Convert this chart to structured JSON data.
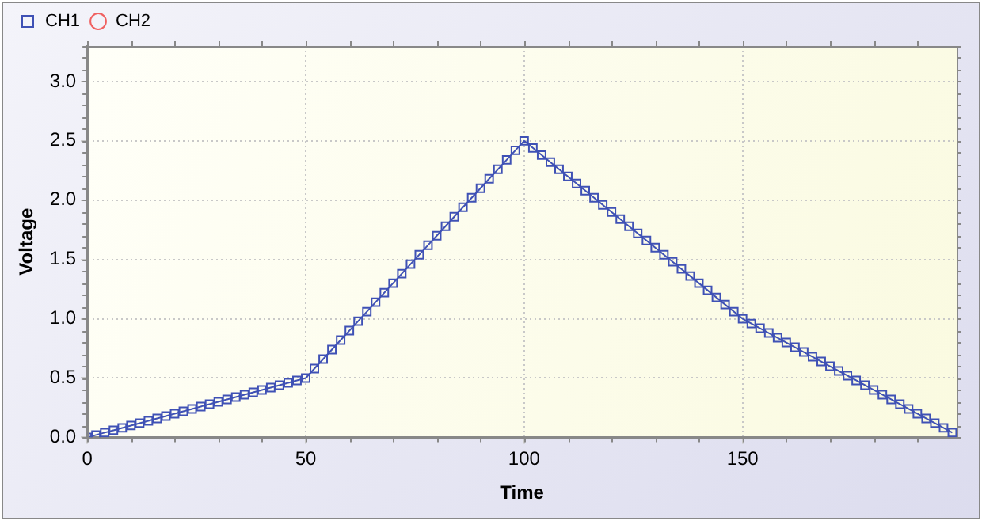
{
  "chart_data": {
    "type": "line",
    "xlabel": "Time",
    "ylabel": "Voltage",
    "xlim": [
      0,
      199
    ],
    "ylim": [
      0,
      3.3
    ],
    "xticks": [
      0,
      50,
      100,
      150
    ],
    "yticks": [
      {
        "value": 0,
        "label": "0.0"
      },
      {
        "value": 0.5,
        "label": "0.5"
      },
      {
        "value": 1,
        "label": "1.0"
      },
      {
        "value": 1.5,
        "label": "1.5"
      },
      {
        "value": 2,
        "label": "2.0"
      },
      {
        "value": 2.5,
        "label": "2.5"
      },
      {
        "value": 3,
        "label": "3.0"
      }
    ],
    "grid": true,
    "legend": "top left",
    "line_style": "solid",
    "series": [
      {
        "name": "CH1",
        "color": "#3f51b5",
        "marker": "square",
        "x": [
          0,
          2,
          4,
          6,
          8,
          10,
          12,
          14,
          16,
          18,
          20,
          22,
          24,
          26,
          28,
          30,
          32,
          34,
          36,
          38,
          40,
          42,
          44,
          46,
          48,
          50,
          52,
          54,
          56,
          58,
          60,
          62,
          64,
          66,
          68,
          70,
          72,
          74,
          76,
          78,
          80,
          82,
          84,
          86,
          88,
          90,
          92,
          94,
          96,
          98,
          100,
          102,
          104,
          106,
          108,
          110,
          112,
          114,
          116,
          118,
          120,
          122,
          124,
          126,
          128,
          130,
          132,
          134,
          136,
          138,
          140,
          142,
          144,
          146,
          148,
          150,
          152,
          154,
          156,
          158,
          160,
          162,
          164,
          166,
          168,
          170,
          172,
          174,
          176,
          178,
          180,
          182,
          184,
          186,
          188,
          190,
          192,
          194,
          196,
          198
        ],
        "values": [
          0,
          0.02,
          0.04,
          0.06,
          0.08,
          0.1,
          0.12,
          0.14,
          0.16,
          0.18,
          0.2,
          0.22,
          0.24,
          0.26,
          0.28,
          0.3,
          0.32,
          0.34,
          0.36,
          0.38,
          0.4,
          0.42,
          0.44,
          0.46,
          0.48,
          0.5,
          0.58,
          0.66,
          0.74,
          0.82,
          0.9,
          0.98,
          1.06,
          1.14,
          1.22,
          1.3,
          1.38,
          1.46,
          1.54,
          1.62,
          1.7,
          1.78,
          1.86,
          1.94,
          2.02,
          2.1,
          2.18,
          2.26,
          2.34,
          2.42,
          2.5,
          2.44,
          2.38,
          2.32,
          2.26,
          2.2,
          2.14,
          2.08,
          2.02,
          1.96,
          1.9,
          1.84,
          1.78,
          1.72,
          1.66,
          1.6,
          1.54,
          1.48,
          1.42,
          1.36,
          1.3,
          1.24,
          1.18,
          1.12,
          1.06,
          1.0,
          0.96,
          0.92,
          0.88,
          0.84,
          0.8,
          0.76,
          0.72,
          0.68,
          0.64,
          0.6,
          0.56,
          0.52,
          0.48,
          0.44,
          0.4,
          0.36,
          0.32,
          0.28,
          0.24,
          0.2,
          0.16,
          0.12,
          0.08,
          0.04
        ]
      },
      {
        "name": "CH2",
        "color": "#f06060",
        "marker": "circle"
      }
    ]
  }
}
